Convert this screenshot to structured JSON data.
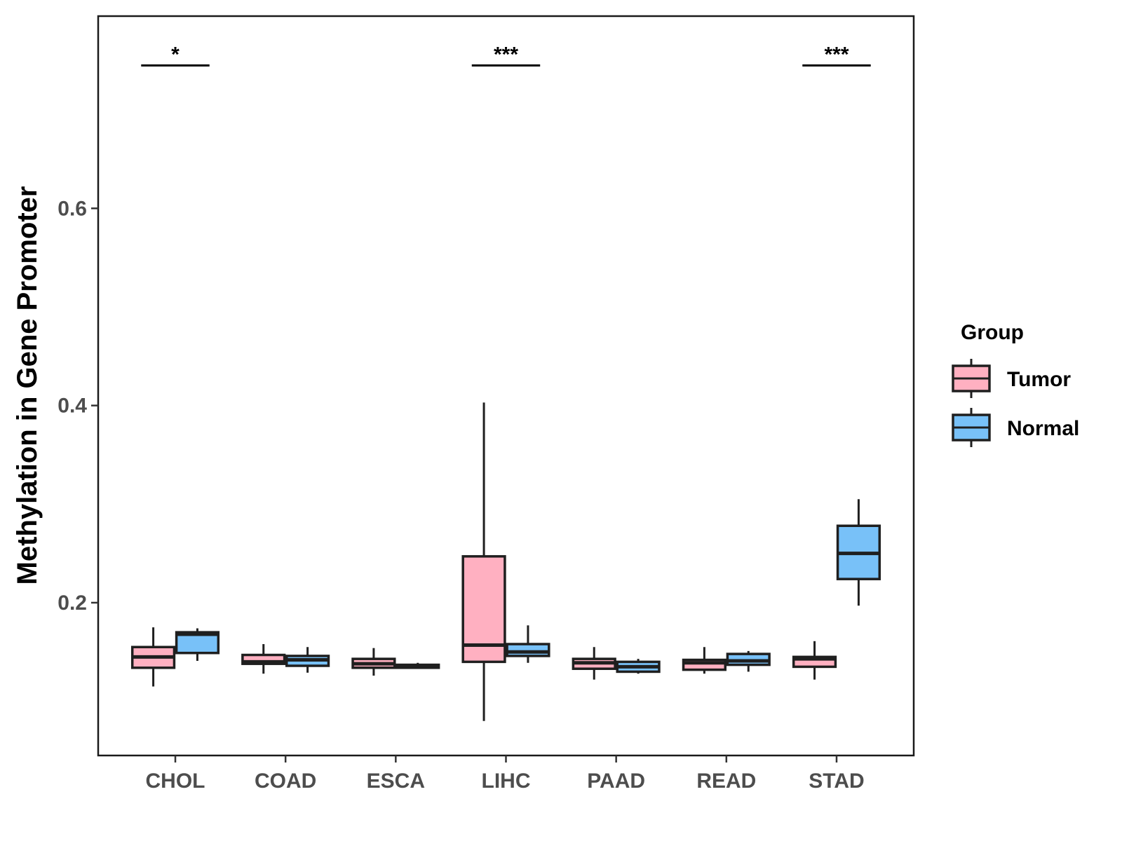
{
  "chart_data": {
    "type": "boxplot",
    "title": "",
    "xlabel": "",
    "ylabel": "Methylation in Gene Promoter",
    "ylim": [
      0.045,
      0.795
    ],
    "yticks": [
      0.2,
      0.4,
      0.6
    ],
    "ytick_labels": [
      "0.2",
      "0.4",
      "0.6"
    ],
    "grid": false,
    "legend_position": "right",
    "legend_title": "Group",
    "groups": [
      {
        "name": "Tumor",
        "color": "#FFB0C1"
      },
      {
        "name": "Normal",
        "color": "#78C1F8"
      }
    ],
    "categories": [
      "CHOL",
      "COAD",
      "ESCA",
      "LIHC",
      "PAAD",
      "READ",
      "STAD"
    ],
    "boxes": [
      {
        "category": "CHOL",
        "group": "Tumor",
        "whisker_low": 0.115,
        "q1": 0.134,
        "median": 0.145,
        "q3": 0.155,
        "whisker_high": 0.175
      },
      {
        "category": "CHOL",
        "group": "Normal",
        "whisker_low": 0.141,
        "q1": 0.149,
        "median": 0.168,
        "q3": 0.17,
        "whisker_high": 0.174
      },
      {
        "category": "COAD",
        "group": "Tumor",
        "whisker_low": 0.128,
        "q1": 0.138,
        "median": 0.14,
        "q3": 0.147,
        "whisker_high": 0.158
      },
      {
        "category": "COAD",
        "group": "Normal",
        "whisker_low": 0.129,
        "q1": 0.136,
        "median": 0.142,
        "q3": 0.146,
        "whisker_high": 0.155
      },
      {
        "category": "ESCA",
        "group": "Tumor",
        "whisker_low": 0.126,
        "q1": 0.134,
        "median": 0.138,
        "q3": 0.143,
        "whisker_high": 0.154
      },
      {
        "category": "ESCA",
        "group": "Normal",
        "whisker_low": 0.133,
        "q1": 0.134,
        "median": 0.135,
        "q3": 0.137,
        "whisker_high": 0.139
      },
      {
        "category": "LIHC",
        "group": "Tumor",
        "whisker_low": 0.08,
        "q1": 0.14,
        "median": 0.157,
        "q3": 0.247,
        "whisker_high": 0.403
      },
      {
        "category": "LIHC",
        "group": "Normal",
        "whisker_low": 0.139,
        "q1": 0.146,
        "median": 0.15,
        "q3": 0.158,
        "whisker_high": 0.177
      },
      {
        "category": "PAAD",
        "group": "Tumor",
        "whisker_low": 0.122,
        "q1": 0.133,
        "median": 0.139,
        "q3": 0.143,
        "whisker_high": 0.155
      },
      {
        "category": "PAAD",
        "group": "Normal",
        "whisker_low": 0.128,
        "q1": 0.13,
        "median": 0.135,
        "q3": 0.14,
        "whisker_high": 0.143
      },
      {
        "category": "READ",
        "group": "Tumor",
        "whisker_low": 0.128,
        "q1": 0.132,
        "median": 0.139,
        "q3": 0.142,
        "whisker_high": 0.155
      },
      {
        "category": "READ",
        "group": "Normal",
        "whisker_low": 0.13,
        "q1": 0.137,
        "median": 0.141,
        "q3": 0.148,
        "whisker_high": 0.151
      },
      {
        "category": "STAD",
        "group": "Tumor",
        "whisker_low": 0.122,
        "q1": 0.135,
        "median": 0.143,
        "q3": 0.145,
        "whisker_high": 0.161
      },
      {
        "category": "STAD",
        "group": "Normal",
        "whisker_low": 0.197,
        "q1": 0.224,
        "median": 0.25,
        "q3": 0.278,
        "whisker_high": 0.305
      }
    ],
    "significance": [
      {
        "category": "CHOL",
        "label": "*",
        "y": 0.745
      },
      {
        "category": "LIHC",
        "label": "***",
        "y": 0.745
      },
      {
        "category": "STAD",
        "label": "***",
        "y": 0.745
      }
    ]
  }
}
